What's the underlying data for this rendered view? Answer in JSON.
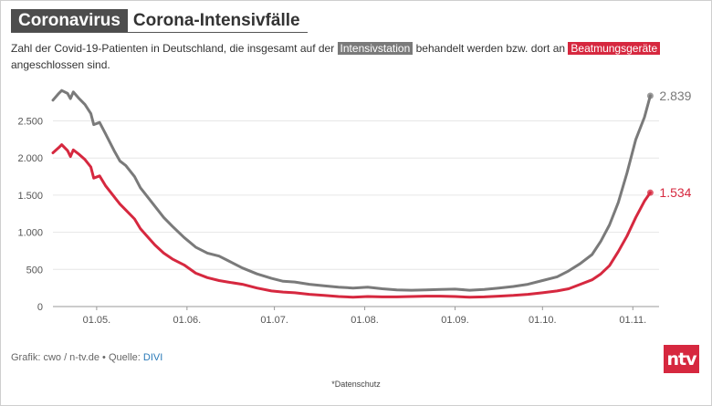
{
  "header": {
    "kicker": "Coronavirus",
    "title": "Corona-Intensivfälle"
  },
  "subtitle": {
    "part1": "Zahl der Covid-19-Patienten in Deutschland, die insgesamt auf der",
    "tag_icu": "Intensivstation",
    "part2": "behandelt werden bzw. dort an",
    "tag_vent": "Beatmungsgeräte",
    "part3": "angeschlossen sind."
  },
  "footer": {
    "credit_prefix": "Grafik: cwo / n-tv.de • Quelle:",
    "source_link": "DIVI",
    "privacy": "*Datenschutz",
    "logo_text": "ntv"
  },
  "colors": {
    "icu": "#7a7a7a",
    "ventilated": "#d6283f",
    "kicker_bg": "#4d4d4d"
  },
  "chart_data": {
    "type": "line",
    "title": "Corona-Intensivfälle",
    "x_ticks": [
      "01.05.",
      "01.06.",
      "01.07.",
      "01.08.",
      "01.09.",
      "01.10.",
      "01.11."
    ],
    "xlim": [
      "2020-04-16",
      "2020-11-10"
    ],
    "ylim": [
      0,
      2900
    ],
    "y_ticks": [
      0,
      500,
      1000,
      1500,
      2000,
      2500
    ],
    "y_tick_labels": [
      "0",
      "500",
      "1.000",
      "1.500",
      "2.000",
      "2.500"
    ],
    "grid": "horizontal",
    "series": [
      {
        "name": "Intensivstation",
        "color": "#7a7a7a",
        "end_label": "2.839",
        "points": [
          [
            "2020-04-16",
            2780
          ],
          [
            "2020-04-18",
            2870
          ],
          [
            "2020-04-19",
            2910
          ],
          [
            "2020-04-21",
            2870
          ],
          [
            "2020-04-22",
            2800
          ],
          [
            "2020-04-23",
            2890
          ],
          [
            "2020-04-25",
            2800
          ],
          [
            "2020-04-27",
            2720
          ],
          [
            "2020-04-29",
            2600
          ],
          [
            "2020-04-30",
            2450
          ],
          [
            "2020-05-02",
            2480
          ],
          [
            "2020-05-04",
            2330
          ],
          [
            "2020-05-07",
            2100
          ],
          [
            "2020-05-09",
            1960
          ],
          [
            "2020-05-11",
            1900
          ],
          [
            "2020-05-14",
            1750
          ],
          [
            "2020-05-16",
            1600
          ],
          [
            "2020-05-18",
            1500
          ],
          [
            "2020-05-21",
            1350
          ],
          [
            "2020-05-24",
            1200
          ],
          [
            "2020-05-27",
            1080
          ],
          [
            "2020-05-31",
            930
          ],
          [
            "2020-06-04",
            800
          ],
          [
            "2020-06-08",
            720
          ],
          [
            "2020-06-12",
            680
          ],
          [
            "2020-06-15",
            620
          ],
          [
            "2020-06-20",
            520
          ],
          [
            "2020-06-25",
            440
          ],
          [
            "2020-06-30",
            380
          ],
          [
            "2020-07-04",
            340
          ],
          [
            "2020-07-08",
            330
          ],
          [
            "2020-07-13",
            300
          ],
          [
            "2020-07-18",
            280
          ],
          [
            "2020-07-23",
            260
          ],
          [
            "2020-07-28",
            250
          ],
          [
            "2020-08-02",
            260
          ],
          [
            "2020-08-07",
            240
          ],
          [
            "2020-08-12",
            225
          ],
          [
            "2020-08-17",
            220
          ],
          [
            "2020-08-22",
            225
          ],
          [
            "2020-08-27",
            230
          ],
          [
            "2020-09-01",
            235
          ],
          [
            "2020-09-06",
            220
          ],
          [
            "2020-09-11",
            230
          ],
          [
            "2020-09-16",
            250
          ],
          [
            "2020-09-21",
            270
          ],
          [
            "2020-09-26",
            300
          ],
          [
            "2020-10-01",
            350
          ],
          [
            "2020-10-06",
            400
          ],
          [
            "2020-10-10",
            480
          ],
          [
            "2020-10-14",
            580
          ],
          [
            "2020-10-18",
            700
          ],
          [
            "2020-10-21",
            880
          ],
          [
            "2020-10-24",
            1100
          ],
          [
            "2020-10-27",
            1400
          ],
          [
            "2020-10-30",
            1800
          ],
          [
            "2020-11-02",
            2250
          ],
          [
            "2020-11-05",
            2550
          ],
          [
            "2020-11-07",
            2839
          ]
        ]
      },
      {
        "name": "Beatmungsgeräte",
        "color": "#d6283f",
        "end_label": "1.534",
        "points": [
          [
            "2020-04-16",
            2070
          ],
          [
            "2020-04-18",
            2140
          ],
          [
            "2020-04-19",
            2180
          ],
          [
            "2020-04-21",
            2100
          ],
          [
            "2020-04-22",
            2020
          ],
          [
            "2020-04-23",
            2110
          ],
          [
            "2020-04-25",
            2050
          ],
          [
            "2020-04-27",
            1980
          ],
          [
            "2020-04-29",
            1880
          ],
          [
            "2020-04-30",
            1730
          ],
          [
            "2020-05-02",
            1760
          ],
          [
            "2020-05-04",
            1630
          ],
          [
            "2020-05-07",
            1480
          ],
          [
            "2020-05-09",
            1380
          ],
          [
            "2020-05-11",
            1300
          ],
          [
            "2020-05-14",
            1180
          ],
          [
            "2020-05-16",
            1050
          ],
          [
            "2020-05-18",
            960
          ],
          [
            "2020-05-21",
            830
          ],
          [
            "2020-05-24",
            720
          ],
          [
            "2020-05-27",
            640
          ],
          [
            "2020-05-31",
            560
          ],
          [
            "2020-06-04",
            450
          ],
          [
            "2020-06-08",
            390
          ],
          [
            "2020-06-12",
            350
          ],
          [
            "2020-06-15",
            330
          ],
          [
            "2020-06-20",
            300
          ],
          [
            "2020-06-25",
            250
          ],
          [
            "2020-06-30",
            210
          ],
          [
            "2020-07-04",
            195
          ],
          [
            "2020-07-08",
            185
          ],
          [
            "2020-07-13",
            165
          ],
          [
            "2020-07-18",
            150
          ],
          [
            "2020-07-23",
            135
          ],
          [
            "2020-07-28",
            125
          ],
          [
            "2020-08-02",
            135
          ],
          [
            "2020-08-07",
            130
          ],
          [
            "2020-08-12",
            130
          ],
          [
            "2020-08-17",
            135
          ],
          [
            "2020-08-22",
            140
          ],
          [
            "2020-08-27",
            140
          ],
          [
            "2020-09-01",
            135
          ],
          [
            "2020-09-06",
            125
          ],
          [
            "2020-09-11",
            130
          ],
          [
            "2020-09-16",
            140
          ],
          [
            "2020-09-21",
            150
          ],
          [
            "2020-09-26",
            165
          ],
          [
            "2020-10-01",
            185
          ],
          [
            "2020-10-06",
            210
          ],
          [
            "2020-10-10",
            240
          ],
          [
            "2020-10-14",
            300
          ],
          [
            "2020-10-18",
            360
          ],
          [
            "2020-10-21",
            440
          ],
          [
            "2020-10-24",
            550
          ],
          [
            "2020-10-27",
            740
          ],
          [
            "2020-10-30",
            950
          ],
          [
            "2020-11-02",
            1200
          ],
          [
            "2020-11-05",
            1420
          ],
          [
            "2020-11-07",
            1534
          ]
        ]
      }
    ]
  }
}
